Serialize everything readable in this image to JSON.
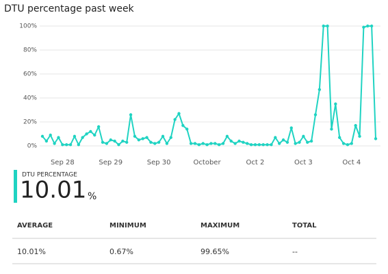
{
  "chart_data": {
    "type": "line",
    "title": "DTU percentage past week",
    "categories": [
      null,
      null,
      null,
      null,
      null,
      "Sep 28",
      null,
      null,
      null,
      null,
      null,
      null,
      null,
      null,
      null,
      null,
      null,
      "Sep 29",
      null,
      null,
      null,
      null,
      null,
      null,
      null,
      null,
      null,
      null,
      null,
      "Sep 30",
      null,
      null,
      null,
      null,
      null,
      null,
      null,
      null,
      null,
      null,
      null,
      "October",
      null,
      null,
      null,
      null,
      null,
      null,
      null,
      null,
      null,
      null,
      null,
      "Oct 2",
      null,
      null,
      null,
      null,
      null,
      null,
      null,
      null,
      null,
      null,
      null,
      "Oct 3",
      null,
      null,
      null,
      null,
      null,
      null,
      null,
      null,
      null,
      null,
      null,
      "Oct 4",
      null,
      null,
      null,
      null,
      null,
      null
    ],
    "values": [
      8,
      4,
      9,
      2,
      7,
      1,
      1,
      1,
      8,
      1,
      7,
      10,
      12,
      9,
      16,
      3,
      2,
      5,
      4,
      1,
      4,
      3,
      26,
      8,
      5,
      6,
      7,
      3,
      2,
      3,
      8,
      2,
      7,
      22,
      27,
      17,
      14,
      2,
      2,
      1,
      2,
      1,
      2,
      2,
      1,
      2,
      8,
      4,
      2,
      4,
      3,
      2,
      1,
      1,
      1,
      1,
      1,
      1,
      7,
      2,
      5,
      3,
      15,
      2,
      3,
      8,
      3,
      4,
      26,
      47,
      100,
      100,
      14,
      35,
      7,
      2,
      1,
      2,
      17,
      8,
      99,
      100,
      100,
      6
    ],
    "color": "#1fd3c2",
    "ylim": [
      0,
      100
    ],
    "yticks": [
      {
        "value": 0,
        "label": "0%"
      },
      {
        "value": 20,
        "label": "20%"
      },
      {
        "value": 40,
        "label": "40%"
      },
      {
        "value": 60,
        "label": "60%"
      },
      {
        "value": 80,
        "label": "80%"
      },
      {
        "value": 100,
        "label": "100%"
      }
    ],
    "grid": true
  },
  "summary": {
    "label": "DTU PERCENTAGE",
    "value": "10.01",
    "unit": "%"
  },
  "table": {
    "headers": [
      "AVERAGE",
      "MINIMUM",
      "MAXIMUM",
      "TOTAL"
    ],
    "rows": [
      [
        "10.01%",
        "0.67%",
        "99.65%",
        "--"
      ]
    ]
  }
}
